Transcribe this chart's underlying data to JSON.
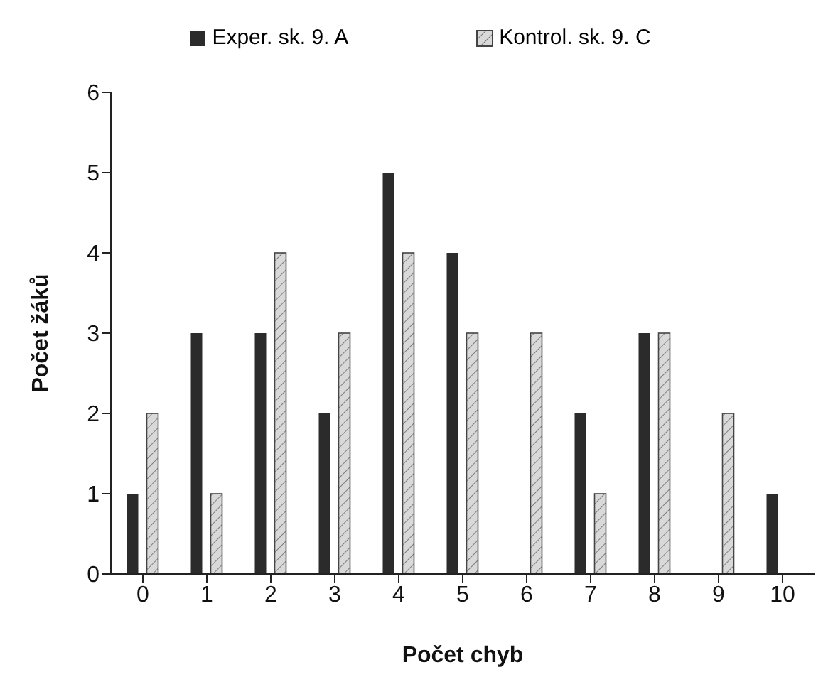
{
  "chart_data": {
    "type": "bar",
    "xlabel": "Počet chyb",
    "ylabel": "Počet žáků",
    "categories": [
      "0",
      "1",
      "2",
      "3",
      "4",
      "5",
      "6",
      "7",
      "8",
      "9",
      "10"
    ],
    "series": [
      {
        "name": "Exper. sk. 9. A",
        "color": "#2b2b2b",
        "values": [
          1,
          3,
          3,
          2,
          5,
          4,
          0,
          2,
          3,
          0,
          1
        ]
      },
      {
        "name": "Kontrol. sk. 9. C",
        "color": "#d9d9d9",
        "values": [
          2,
          1,
          4,
          3,
          4,
          3,
          3,
          1,
          3,
          2,
          0
        ]
      }
    ],
    "ylim": [
      0,
      6
    ],
    "yticks": [
      0,
      1,
      2,
      3,
      4,
      5,
      6
    ],
    "grid": false,
    "legend": "top"
  }
}
